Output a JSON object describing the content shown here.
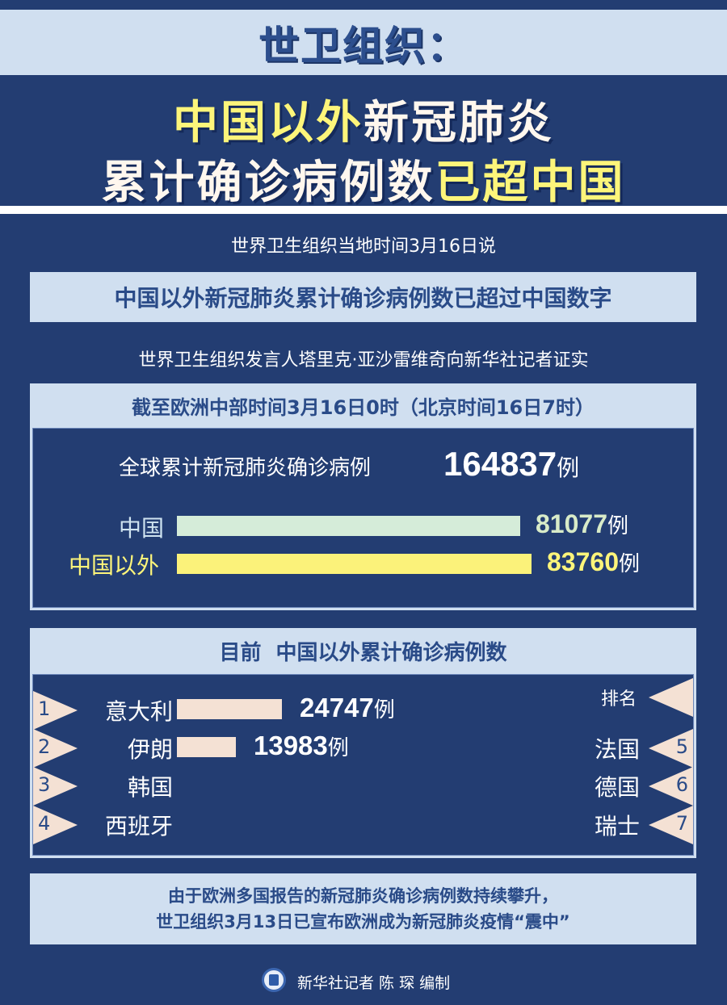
{
  "header": {
    "kicker": "世卫组织：",
    "title_line1_highlight": "中国以外",
    "title_line1_rest": "新冠肺炎",
    "title_line2_rest": "累计确诊病例数",
    "title_line2_highlight": "已超中国"
  },
  "intro": "世界卫生组织当地时间3月16日说",
  "headline_box": "中国以外新冠肺炎累计确诊病例数已超过中国数字",
  "source_line": "世界卫生组织发言人塔里克·亚沙雷维奇向新华社记者证实",
  "totals": {
    "header": "截至欧洲中部时间3月16日0时（北京时间16日7时）",
    "global_label": "全球累计新冠肺炎确诊病例",
    "global_value": "164837",
    "unit": "例",
    "china_label": "中国",
    "china_value": "81077",
    "outside_label": "中国以外",
    "outside_value": "83760"
  },
  "ranking": {
    "header": "目前  中国以外累计确诊病例数",
    "rank_label": "排名",
    "unit": "例",
    "left": [
      {
        "rank": "1",
        "country": "意大利",
        "value": "24747"
      },
      {
        "rank": "2",
        "country": "伊朗",
        "value": "13983"
      },
      {
        "rank": "3",
        "country": "韩国"
      },
      {
        "rank": "4",
        "country": "西班牙"
      }
    ],
    "right": [
      {
        "rank": "5",
        "country": "法国"
      },
      {
        "rank": "6",
        "country": "德国"
      },
      {
        "rank": "7",
        "country": "瑞士"
      }
    ]
  },
  "footer_note": {
    "line1": "由于欧洲多国报告的新冠肺炎确诊病例数持续攀升，",
    "line2": "世卫组织3月13日已宣布欧洲成为新冠肺炎疫情“震中”"
  },
  "credit": "新华社记者 陈 琛 编制",
  "chart_data": {
    "type": "bar",
    "categories": [
      "中国",
      "中国以外",
      "意大利",
      "伊朗"
    ],
    "values": [
      81077,
      83760,
      24747,
      13983
    ],
    "colors": {
      "china": "#d5ecd9",
      "outside": "#fbf27a",
      "country": "#f4e1d4"
    }
  },
  "colors": {
    "background": "#233d72",
    "panel": "#d0dff0",
    "highlight": "#fdf57a"
  }
}
